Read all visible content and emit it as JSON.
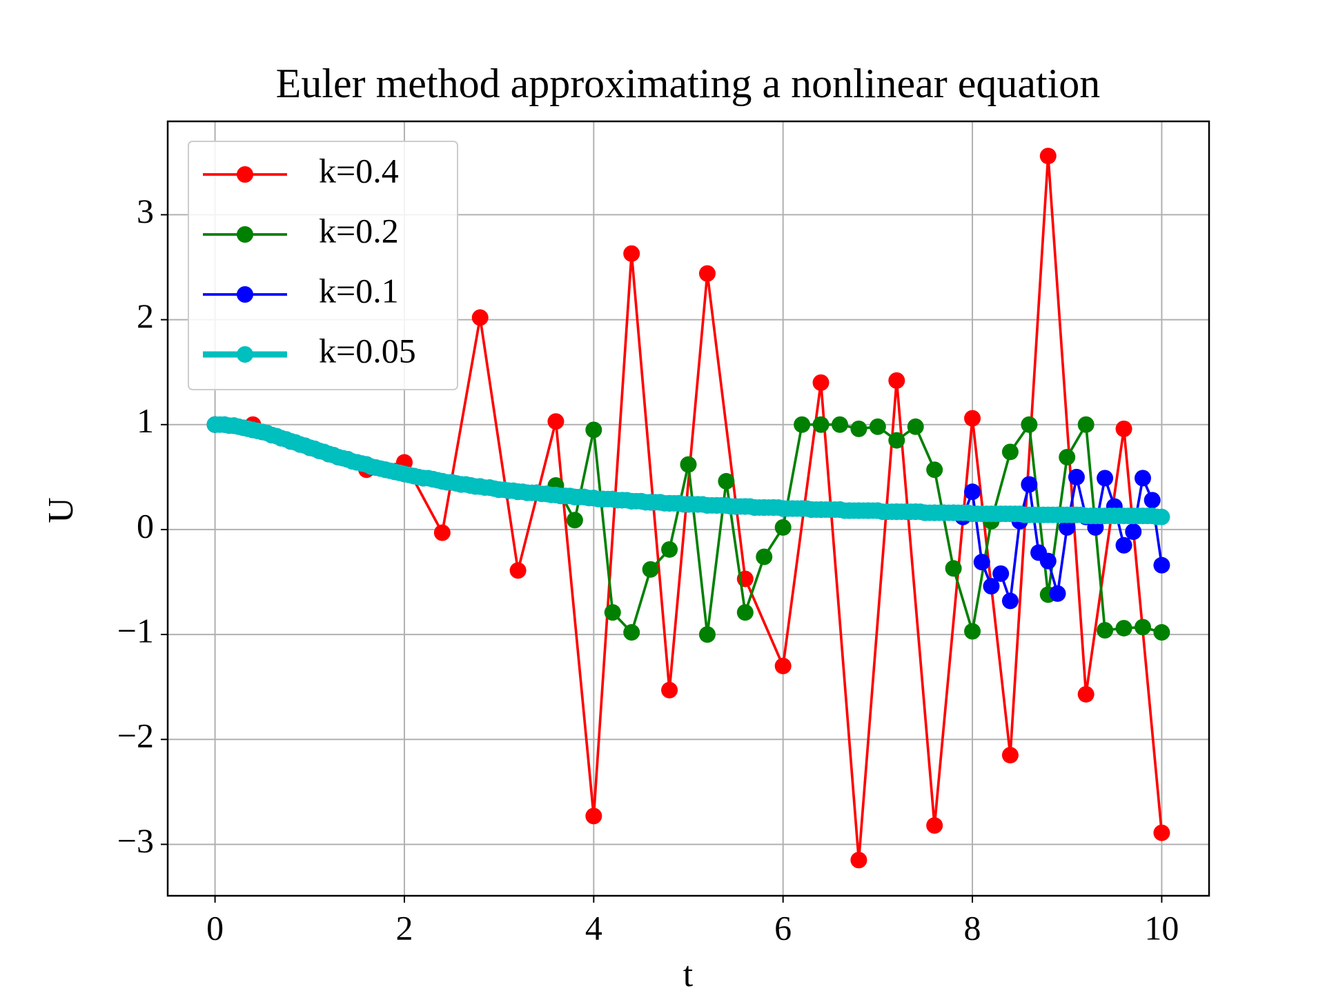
{
  "chart_data": {
    "type": "line",
    "title": "Euler method approximating a nonlinear equation",
    "x_label": "t",
    "y_label": "U",
    "xlim": [
      -0.5,
      10.5
    ],
    "ylim": [
      -3.49,
      3.89
    ],
    "xticks": [
      0,
      2,
      4,
      6,
      8,
      10
    ],
    "yticks": [
      {
        "value": -3,
        "label": "−3"
      },
      {
        "value": -2,
        "label": "−2"
      },
      {
        "value": -1,
        "label": "−1"
      },
      0,
      1,
      2,
      3
    ],
    "grid": true,
    "legend": "upper left",
    "series": [
      {
        "name": "k=0.4",
        "color": "#ff0000",
        "x": [
          0,
          0.4,
          0.8,
          1.2,
          1.6,
          2.0,
          2.4,
          2.8,
          3.2,
          3.6,
          4.0,
          4.4,
          4.8,
          5.2,
          5.6,
          6.0,
          6.4,
          6.8,
          7.2,
          7.6,
          8.0,
          8.4,
          8.8,
          9.2,
          9.6,
          10.0
        ],
        "values": [
          1.0,
          1.0,
          0.84,
          0.72,
          0.57,
          0.64,
          -0.03,
          2.02,
          -0.39,
          1.03,
          -2.73,
          2.63,
          -1.53,
          2.44,
          -0.47,
          -1.3,
          1.4,
          -3.15,
          1.42,
          -2.82,
          1.06,
          -2.15,
          3.56,
          -1.57,
          0.96,
          -2.89
        ]
      },
      {
        "name": "k=0.2",
        "color": "#008000",
        "x": [
          0,
          0.2,
          0.4,
          0.6,
          0.8,
          1.0,
          1.2,
          1.4,
          1.6,
          1.8,
          2.0,
          2.2,
          2.4,
          2.6,
          2.8,
          3.0,
          3.2,
          3.4,
          3.6,
          3.8,
          4.0,
          4.2,
          4.4,
          4.6,
          4.8,
          5.0,
          5.2,
          5.4,
          5.6,
          5.8,
          6.0,
          6.2,
          6.4,
          6.6,
          6.8,
          7.0,
          7.2,
          7.4,
          7.6,
          7.8,
          8.0,
          8.2,
          8.4,
          8.6,
          8.8,
          9.0,
          9.2,
          9.4,
          9.6,
          9.8,
          10.0
        ],
        "values": [
          1.0,
          0.99,
          0.95,
          0.9,
          0.84,
          0.78,
          0.72,
          0.67,
          0.62,
          0.57,
          0.53,
          0.49,
          0.46,
          0.43,
          0.41,
          0.38,
          0.36,
          0.35,
          0.42,
          0.09,
          0.95,
          -0.79,
          -0.98,
          -0.38,
          -0.19,
          0.62,
          -1.0,
          0.46,
          -0.79,
          -0.26,
          0.02,
          1.0,
          1.0,
          1.0,
          0.96,
          0.98,
          0.85,
          0.98,
          0.57,
          -0.37,
          -0.97,
          0.08,
          0.74,
          1.0,
          -0.62,
          0.69,
          1.0,
          -0.96,
          -0.94,
          -0.93,
          -0.98
        ]
      },
      {
        "name": "k=0.1",
        "color": "#0000ff",
        "x": [
          0,
          0.1,
          0.2,
          0.3,
          0.4,
          0.5,
          0.6,
          0.7,
          0.8,
          0.9,
          1.0,
          1.1,
          1.2,
          1.3,
          1.4,
          1.5,
          1.6,
          1.7,
          1.8,
          1.9,
          2.0,
          2.1,
          2.2,
          2.3,
          2.4,
          2.5,
          2.6,
          2.7,
          2.8,
          2.9,
          3.0,
          3.1,
          3.2,
          3.3,
          3.4,
          3.5,
          3.6,
          3.7,
          3.8,
          3.9,
          4.0,
          4.1,
          4.2,
          4.3,
          4.4,
          4.5,
          4.6,
          4.7,
          4.8,
          4.9,
          5.0,
          5.1,
          5.2,
          5.3,
          5.4,
          5.5,
          5.6,
          5.7,
          5.8,
          5.9,
          6.0,
          6.1,
          6.2,
          6.3,
          6.4,
          6.5,
          6.6,
          6.7,
          6.8,
          6.9,
          7.0,
          7.1,
          7.2,
          7.3,
          7.4,
          7.5,
          7.6,
          7.7,
          7.8,
          7.9,
          8.0,
          8.1,
          8.2,
          8.3,
          8.4,
          8.5,
          8.6,
          8.7,
          8.8,
          8.9,
          9.0,
          9.1,
          9.2,
          9.3,
          9.4,
          9.5,
          9.6,
          9.7,
          9.8,
          9.9,
          10.0
        ],
        "values": [
          1.0,
          1.0,
          0.99,
          0.97,
          0.95,
          0.93,
          0.9,
          0.87,
          0.84,
          0.81,
          0.78,
          0.75,
          0.72,
          0.69,
          0.67,
          0.64,
          0.62,
          0.59,
          0.57,
          0.55,
          0.53,
          0.51,
          0.49,
          0.48,
          0.46,
          0.45,
          0.43,
          0.42,
          0.41,
          0.4,
          0.38,
          0.37,
          0.36,
          0.35,
          0.35,
          0.34,
          0.33,
          0.32,
          0.31,
          0.31,
          0.3,
          0.29,
          0.29,
          0.28,
          0.27,
          0.27,
          0.26,
          0.26,
          0.25,
          0.25,
          0.24,
          0.24,
          0.23,
          0.23,
          0.23,
          0.22,
          0.22,
          0.21,
          0.21,
          0.21,
          0.2,
          0.2,
          0.2,
          0.19,
          0.19,
          0.19,
          0.19,
          0.18,
          0.18,
          0.18,
          0.18,
          0.17,
          0.17,
          0.17,
          0.17,
          0.16,
          0.16,
          0.16,
          0.16,
          0.12,
          0.36,
          -0.31,
          -0.54,
          -0.42,
          -0.68,
          0.08,
          0.43,
          -0.22,
          -0.3,
          -0.61,
          0.02,
          0.5,
          0.12,
          0.02,
          0.49,
          0.22,
          -0.15,
          -0.02,
          0.49,
          0.28,
          -0.34
        ]
      },
      {
        "name": "k=0.05",
        "color": "#00bfbf",
        "x": [
          0,
          0.05,
          0.1,
          0.15,
          0.2,
          0.25,
          0.3,
          0.35,
          0.4,
          0.45,
          0.5,
          0.55,
          0.6,
          0.65,
          0.7,
          0.75,
          0.8,
          0.85,
          0.9,
          0.95,
          1.0,
          1.05,
          1.1,
          1.15,
          1.2,
          1.25,
          1.3,
          1.35,
          1.4,
          1.45,
          1.5,
          1.55,
          1.6,
          1.65,
          1.7,
          1.75,
          1.8,
          1.85,
          1.9,
          1.95,
          2.0,
          2.05,
          2.1,
          2.15,
          2.2,
          2.25,
          2.3,
          2.35,
          2.4,
          2.45,
          2.5,
          2.55,
          2.6,
          2.65,
          2.7,
          2.75,
          2.8,
          2.85,
          2.9,
          2.95,
          3.0,
          3.05,
          3.1,
          3.15,
          3.2,
          3.25,
          3.3,
          3.35,
          3.4,
          3.45,
          3.5,
          3.55,
          3.6,
          3.65,
          3.7,
          3.75,
          3.8,
          3.85,
          3.9,
          3.95,
          4.0,
          4.05,
          4.1,
          4.15,
          4.2,
          4.25,
          4.3,
          4.35,
          4.4,
          4.45,
          4.5,
          4.55,
          4.6,
          4.65,
          4.7,
          4.75,
          4.8,
          4.85,
          4.9,
          4.95,
          5.0,
          5.05,
          5.1,
          5.15,
          5.2,
          5.25,
          5.3,
          5.35,
          5.4,
          5.45,
          5.5,
          5.55,
          5.6,
          5.65,
          5.7,
          5.75,
          5.8,
          5.85,
          5.9,
          5.95,
          6.0,
          6.05,
          6.1,
          6.15,
          6.2,
          6.25,
          6.3,
          6.35,
          6.4,
          6.45,
          6.5,
          6.55,
          6.6,
          6.65,
          6.7,
          6.75,
          6.8,
          6.85,
          6.9,
          6.95,
          7.0,
          7.05,
          7.1,
          7.15,
          7.2,
          7.25,
          7.3,
          7.35,
          7.4,
          7.45,
          7.5,
          7.55,
          7.6,
          7.65,
          7.7,
          7.75,
          7.8,
          7.85,
          7.9,
          7.95,
          8.0,
          8.05,
          8.1,
          8.15,
          8.2,
          8.25,
          8.3,
          8.35,
          8.4,
          8.45,
          8.5,
          8.55,
          8.6,
          8.65,
          8.7,
          8.75,
          8.8,
          8.85,
          8.9,
          8.95,
          9.0,
          9.05,
          9.1,
          9.15,
          9.2,
          9.25,
          9.3,
          9.35,
          9.4,
          9.45,
          9.5,
          9.55,
          9.6,
          9.65,
          9.7,
          9.75,
          9.8,
          9.85,
          9.9,
          9.95,
          10.0
        ],
        "values": [
          1.0,
          1.0,
          1.0,
          0.99,
          0.99,
          0.98,
          0.97,
          0.96,
          0.95,
          0.94,
          0.93,
          0.92,
          0.9,
          0.89,
          0.87,
          0.86,
          0.84,
          0.83,
          0.81,
          0.8,
          0.78,
          0.77,
          0.75,
          0.74,
          0.72,
          0.71,
          0.69,
          0.68,
          0.67,
          0.65,
          0.64,
          0.63,
          0.62,
          0.6,
          0.59,
          0.58,
          0.57,
          0.56,
          0.55,
          0.54,
          0.53,
          0.52,
          0.51,
          0.5,
          0.49,
          0.49,
          0.48,
          0.47,
          0.46,
          0.45,
          0.45,
          0.44,
          0.43,
          0.43,
          0.42,
          0.41,
          0.41,
          0.4,
          0.4,
          0.39,
          0.38,
          0.38,
          0.37,
          0.37,
          0.36,
          0.36,
          0.35,
          0.35,
          0.35,
          0.34,
          0.34,
          0.33,
          0.33,
          0.32,
          0.32,
          0.32,
          0.31,
          0.31,
          0.31,
          0.3,
          0.3,
          0.29,
          0.29,
          0.29,
          0.29,
          0.28,
          0.28,
          0.28,
          0.27,
          0.27,
          0.27,
          0.26,
          0.26,
          0.26,
          0.26,
          0.25,
          0.25,
          0.25,
          0.25,
          0.24,
          0.24,
          0.24,
          0.24,
          0.24,
          0.23,
          0.23,
          0.23,
          0.23,
          0.23,
          0.22,
          0.22,
          0.22,
          0.22,
          0.22,
          0.21,
          0.21,
          0.21,
          0.21,
          0.21,
          0.21,
          0.2,
          0.2,
          0.2,
          0.2,
          0.2,
          0.2,
          0.19,
          0.19,
          0.19,
          0.19,
          0.19,
          0.19,
          0.19,
          0.18,
          0.18,
          0.18,
          0.18,
          0.18,
          0.18,
          0.18,
          0.18,
          0.17,
          0.17,
          0.17,
          0.17,
          0.17,
          0.17,
          0.17,
          0.17,
          0.17,
          0.16,
          0.16,
          0.16,
          0.16,
          0.16,
          0.16,
          0.16,
          0.16,
          0.16,
          0.16,
          0.15,
          0.15,
          0.15,
          0.15,
          0.15,
          0.15,
          0.15,
          0.15,
          0.15,
          0.15,
          0.15,
          0.14,
          0.14,
          0.14,
          0.14,
          0.14,
          0.14,
          0.14,
          0.14,
          0.14,
          0.14,
          0.14,
          0.14,
          0.14,
          0.13,
          0.13,
          0.13,
          0.13,
          0.13,
          0.13,
          0.13,
          0.13,
          0.13,
          0.13,
          0.13,
          0.13,
          0.13,
          0.13,
          0.13,
          0.12,
          0.12
        ]
      }
    ]
  }
}
